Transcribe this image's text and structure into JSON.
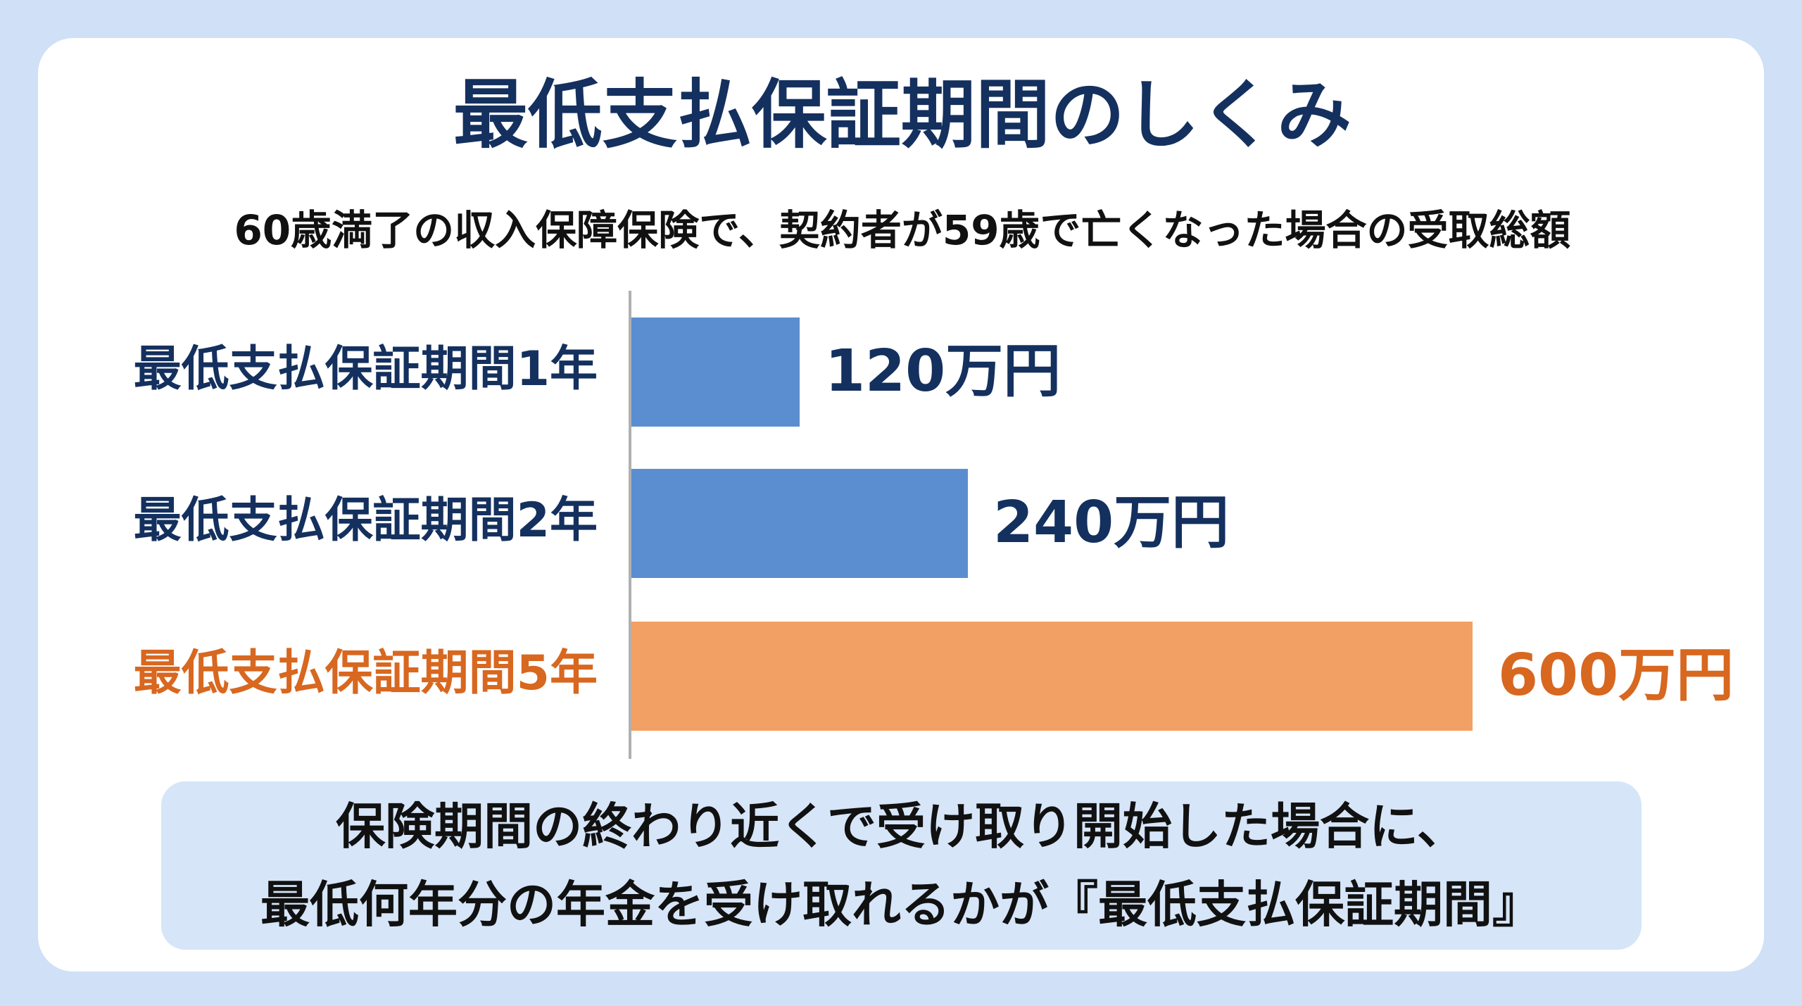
{
  "chart_data": {
    "type": "bar",
    "orientation": "horizontal",
    "title": "最低支払保証期間のしくみ",
    "subtitle": "60歳満了の収入保障保険で、契約者が59歳で亡くなった場合の受取総額",
    "categories": [
      "最低支払保証期間1年",
      "最低支払保証期間2年",
      "最低支払保証期間5年"
    ],
    "values": [
      120,
      240,
      600
    ],
    "value_labels": [
      "120万円",
      "240万円",
      "600万円"
    ],
    "colors": [
      "#5b8ed0",
      "#5b8ed0",
      "#f2a064"
    ],
    "label_colors": [
      "#14305e",
      "#14305e",
      "#d8671f"
    ],
    "note": [
      "保険期間の終わり近くで受け取り開始した場合に、",
      "最低何年分の年金を受け取れるかが『最低支払保証期間』"
    ]
  }
}
